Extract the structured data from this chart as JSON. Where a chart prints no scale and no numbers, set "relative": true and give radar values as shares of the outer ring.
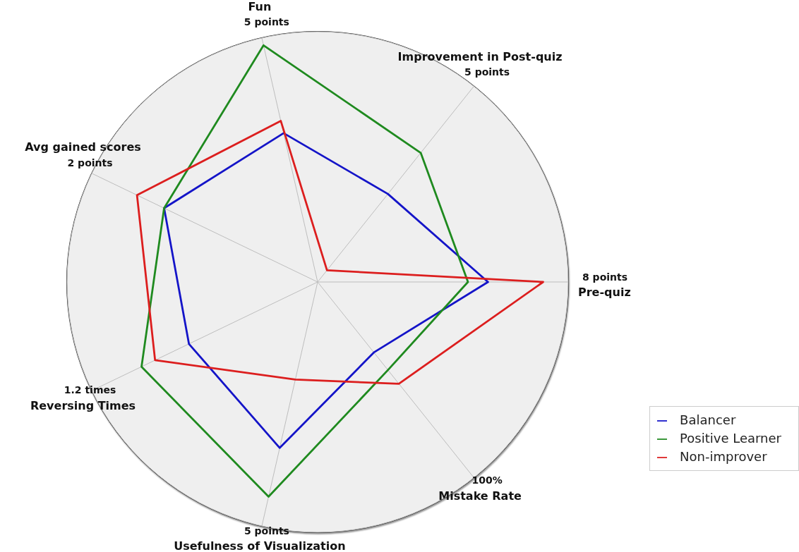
{
  "chart_data": {
    "type": "radar",
    "relative": true,
    "categories": [
      "Fun",
      "Improvement in Post-quiz",
      "Pre-quiz",
      "Mistake Rate",
      "Usefulness of Visualization",
      "Reversing Times",
      "Avg gained scores"
    ],
    "annotations": [
      "5 points",
      "5 points",
      "8 points",
      "100%",
      "5 points",
      "1.2 times",
      "2 points"
    ],
    "series": [
      {
        "name": "Balancer",
        "color": "#1414c8",
        "values": [
          0.61,
          0.45,
          0.68,
          0.36,
          0.68,
          0.57,
          0.68
        ]
      },
      {
        "name": "Positive Learner",
        "color": "#1f8a1f",
        "values": [
          0.97,
          0.66,
          0.6,
          0.45,
          0.88,
          0.78,
          0.68
        ]
      },
      {
        "name": "Non-improver",
        "color": "#dc1e1e",
        "values": [
          0.66,
          0.06,
          0.9,
          0.52,
          0.4,
          0.72,
          0.8
        ]
      }
    ],
    "grid": true,
    "legend": "bottom right",
    "marker": "none",
    "line_style": "solid"
  }
}
